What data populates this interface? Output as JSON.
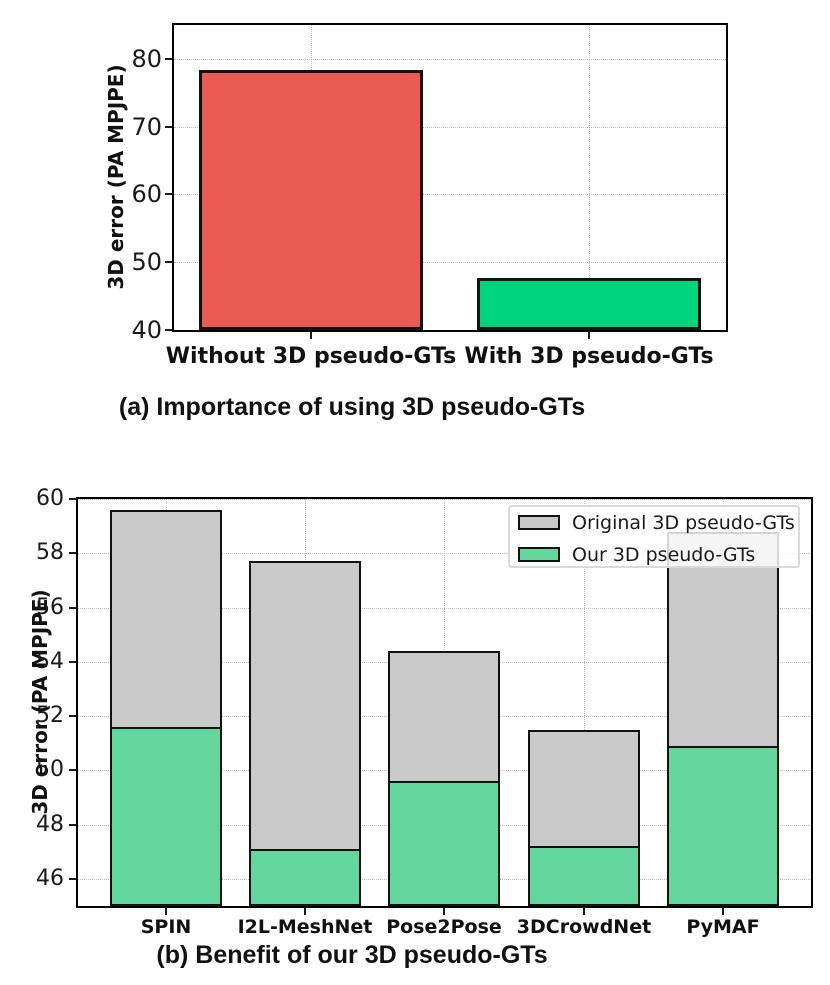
{
  "chart_data": [
    {
      "id": "chart-a",
      "type": "bar",
      "title": "(a) Importance of using 3D pseudo-GTs",
      "ylabel": "3D error (PA MPJPE)",
      "ylim": [
        40,
        85
      ],
      "yticks": [
        40,
        50,
        60,
        70,
        80
      ],
      "grid": true,
      "categories": [
        "Without 3D pseudo-GTs",
        "With 3D pseudo-GTs"
      ],
      "values": [
        78.3,
        47.7
      ],
      "bar_colors": [
        "#e95b53",
        "#00d57e"
      ],
      "bar_edge_color": "#111111"
    },
    {
      "id": "chart-b",
      "type": "bar",
      "title": "(b) Benefit of our 3D pseudo-GTs",
      "ylabel": "3D error (PA MPJPE)",
      "ylim": [
        45,
        60
      ],
      "yticks": [
        46,
        48,
        50,
        52,
        54,
        56,
        58,
        60
      ],
      "grid": true,
      "legend_position": "upper right",
      "categories": [
        "SPIN",
        "I2L-MeshNet",
        "Pose2Pose",
        "3DCrowdNet",
        "PyMAF"
      ],
      "series": [
        {
          "name": "Original 3D pseudo-GTs",
          "color": "#c9c9c9",
          "values": [
            59.6,
            57.7,
            54.4,
            51.5,
            58.8
          ]
        },
        {
          "name": "Our 3D pseudo-GTs",
          "color": "#63d69e",
          "values": [
            51.6,
            47.1,
            49.6,
            47.2,
            50.9
          ]
        }
      ],
      "bar_edge_color": "#111111"
    }
  ]
}
